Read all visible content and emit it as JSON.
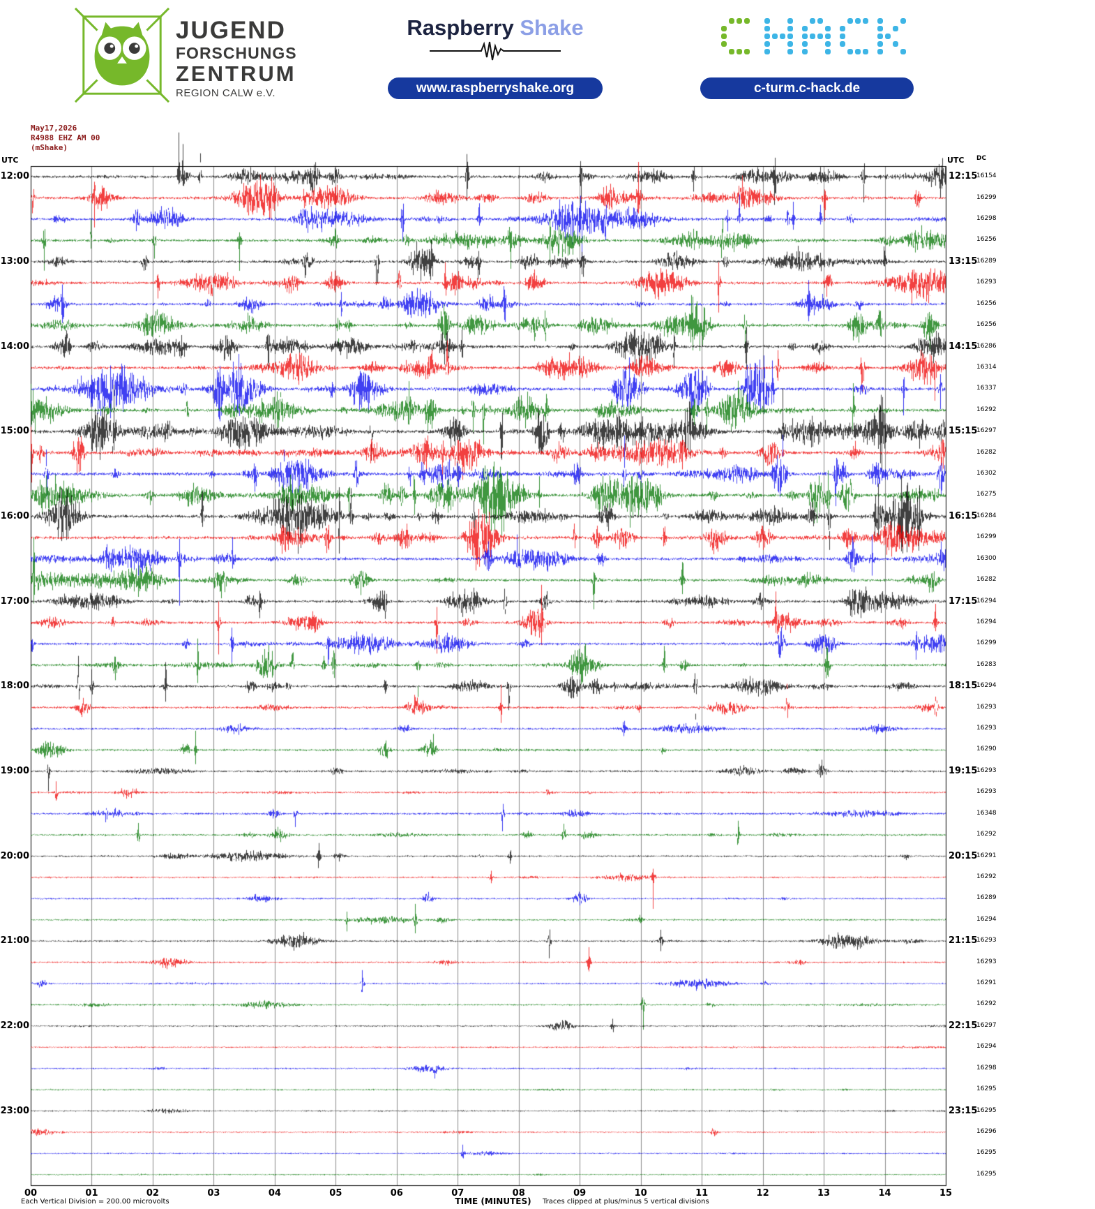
{
  "colors": {
    "pill_blue": "#16399e",
    "brand_navy": "#1c2340",
    "brand_periwinkle": "#8c9fe6",
    "logo_green": "#76b82a",
    "logo_cyan": "#3db5e6",
    "station_text": "#8b1a1a",
    "text_gray": "#3a3a39"
  },
  "header": {
    "jfz": {
      "line1": "JUGEND",
      "line2": "FORSCHUNGS",
      "line3": "ZENTRUM",
      "line4": "REGION CALW e.V."
    },
    "raspberry": {
      "brand_bold": "Raspberry",
      "brand_light": "Shake",
      "url": "www.raspberryshake.org"
    },
    "chack": {
      "text": "CHACK",
      "url": "c-turm.c-hack.de"
    }
  },
  "station": {
    "date": "May17,2026",
    "id": "R4988 EHZ AM 00",
    "network": "(mShake)"
  },
  "axes": {
    "utc_left": "UTC",
    "utc_right": "UTC",
    "dc_header": "DC",
    "xlabel": "TIME (MINUTES)"
  },
  "footer": {
    "left": "Each Vertical Division =  200.00 microvolts",
    "right": "Traces clipped at plus/minus 5 vertical divisions"
  },
  "chart_data": {
    "type": "line",
    "subtype": "helicorder-seismogram",
    "title": "R4988 EHZ AM 00 helicorder, May17,2026",
    "start_time": "12:00",
    "end_time": "24:00",
    "minutes_per_row": 15,
    "rows": 48,
    "xlabel": "TIME (MINUTES)",
    "xlim": [
      0,
      15
    ],
    "grid": true,
    "grid_color": "#8a8a8a",
    "x_ticks": [
      "00",
      "01",
      "02",
      "03",
      "04",
      "05",
      "06",
      "07",
      "08",
      "09",
      "10",
      "11",
      "12",
      "13",
      "14",
      "15"
    ],
    "left_labels": [
      "12:00",
      "13:00",
      "14:00",
      "15:00",
      "16:00",
      "17:00",
      "18:00",
      "19:00",
      "20:00",
      "21:00",
      "22:00",
      "23:00"
    ],
    "right_labels": [
      "12:15",
      "13:15",
      "14:15",
      "15:15",
      "16:15",
      "17:15",
      "18:15",
      "19:15",
      "20:15",
      "21:15",
      "22:15",
      "23:15"
    ],
    "trace_colors": [
      "#000000",
      "#ee0000",
      "#0000ee",
      "#007400"
    ],
    "dc_values": [
      16154,
      16299,
      16298,
      16256,
      16289,
      16293,
      16256,
      16256,
      16286,
      16314,
      16337,
      16292,
      16297,
      16282,
      16302,
      16275,
      16284,
      16299,
      16300,
      16282,
      16294,
      16294,
      16299,
      16283,
      16294,
      16293,
      16293,
      16290,
      16293,
      16293,
      16348,
      16292,
      16291,
      16292,
      16289,
      16294,
      16293,
      16293,
      16291,
      16292,
      16297,
      16294,
      16298,
      16295,
      16295,
      16296,
      16295,
      16295
    ],
    "activity": [
      0.75,
      0.7,
      0.72,
      0.7,
      0.75,
      0.72,
      0.7,
      0.85,
      0.85,
      0.8,
      0.9,
      0.9,
      1.0,
      0.95,
      0.92,
      0.95,
      0.9,
      0.85,
      0.8,
      0.75,
      0.7,
      0.65,
      0.6,
      0.62,
      0.6,
      0.5,
      0.42,
      0.45,
      0.42,
      0.38,
      0.45,
      0.4,
      0.32,
      0.28,
      0.28,
      0.3,
      0.3,
      0.28,
      0.26,
      0.3,
      0.22,
      0.18,
      0.2,
      0.22,
      0.2,
      0.16,
      0.13,
      0.1
    ],
    "microvolts_per_division": 200.0,
    "clip_divisions": 5
  }
}
